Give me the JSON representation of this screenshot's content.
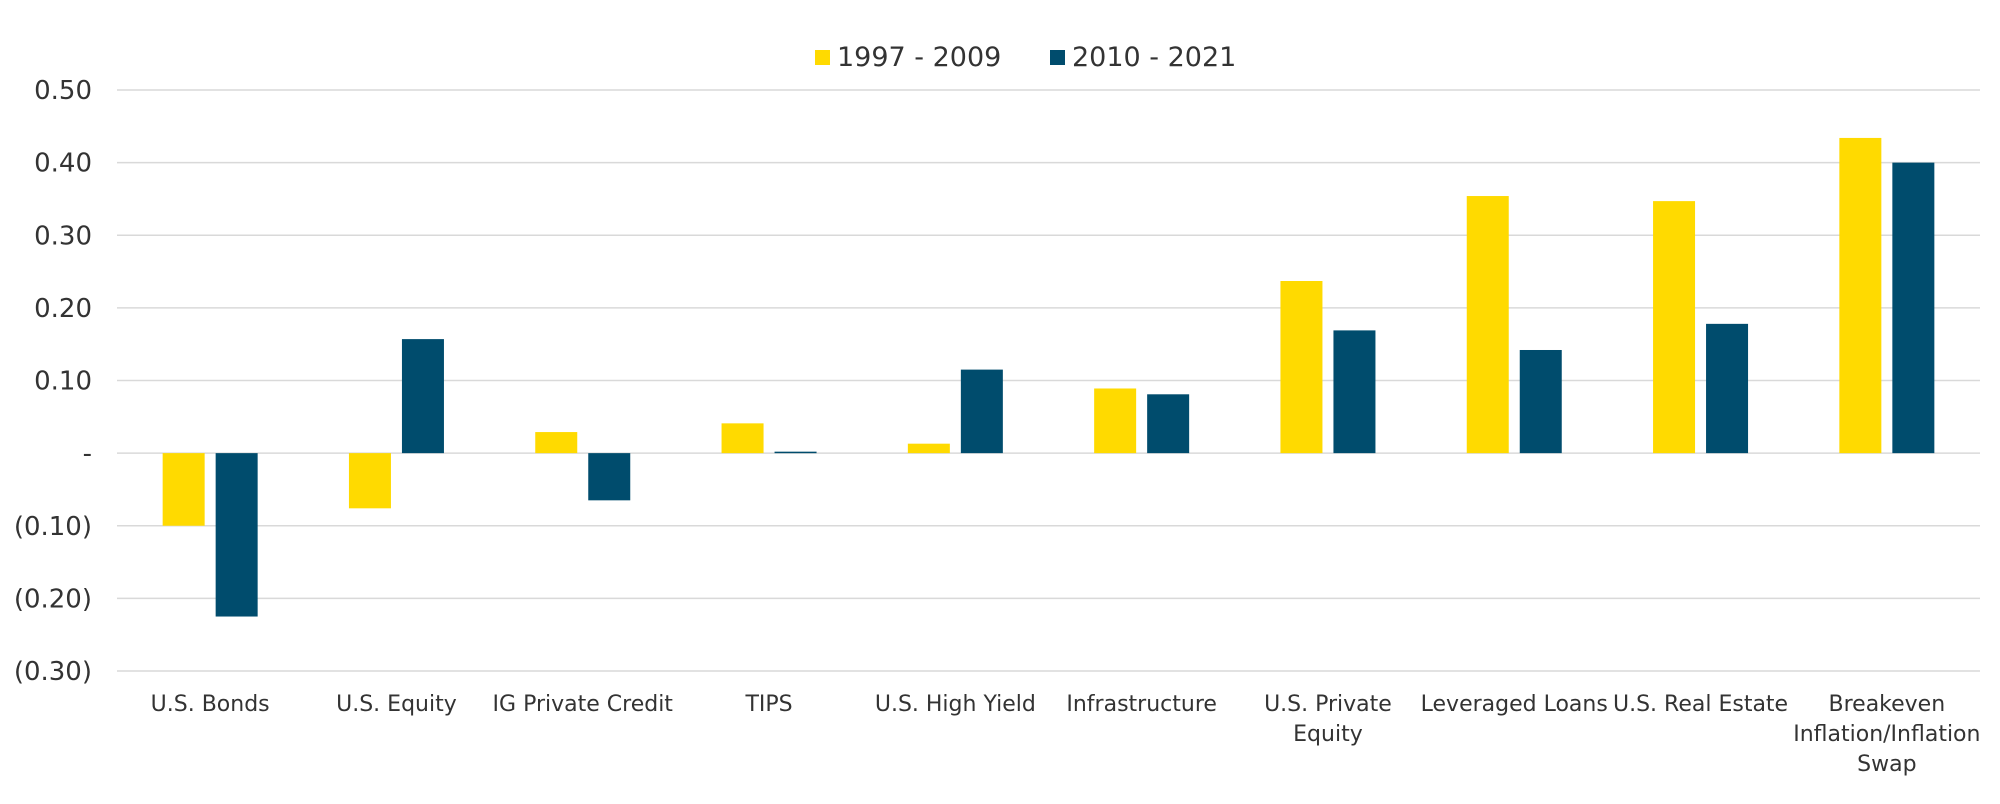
{
  "chart_data": {
    "type": "bar",
    "title": "",
    "xlabel": "",
    "ylabel": "",
    "ylim": [
      -0.3,
      0.5
    ],
    "yticks": [
      {
        "value": 0.5,
        "label": "0.50"
      },
      {
        "value": 0.4,
        "label": "0.40"
      },
      {
        "value": 0.3,
        "label": "0.30"
      },
      {
        "value": 0.2,
        "label": "0.20"
      },
      {
        "value": 0.1,
        "label": "0.10"
      },
      {
        "value": 0.0,
        "label": "-"
      },
      {
        "value": -0.1,
        "label": "(0.10)"
      },
      {
        "value": -0.2,
        "label": "(0.20)"
      },
      {
        "value": -0.3,
        "label": "(0.30)"
      }
    ],
    "grid": true,
    "legend_position": "top-center",
    "categories": [
      [
        "U.S. Bonds"
      ],
      [
        "U.S. Equity"
      ],
      [
        "IG Private Credit"
      ],
      [
        "TIPS"
      ],
      [
        "U.S. High Yield"
      ],
      [
        "Infrastructure"
      ],
      [
        "U.S. Private",
        "Equity"
      ],
      [
        "Leveraged Loans"
      ],
      [
        "U.S. Real Estate"
      ],
      [
        "Breakeven",
        "Inflation/Inflation",
        "Swap"
      ]
    ],
    "series": [
      {
        "name": "1997 - 2009",
        "color": "#FFDA00",
        "values": [
          -0.1,
          -0.076,
          0.029,
          0.041,
          0.013,
          0.089,
          0.237,
          0.354,
          0.347,
          0.434
        ]
      },
      {
        "name": "2010 - 2021",
        "color": "#004C6D",
        "values": [
          -0.225,
          0.157,
          -0.065,
          0.002,
          0.115,
          0.081,
          0.169,
          0.142,
          0.178,
          0.4
        ]
      }
    ],
    "gridline_color": "#D9D9D9",
    "text_color": "#333333"
  }
}
